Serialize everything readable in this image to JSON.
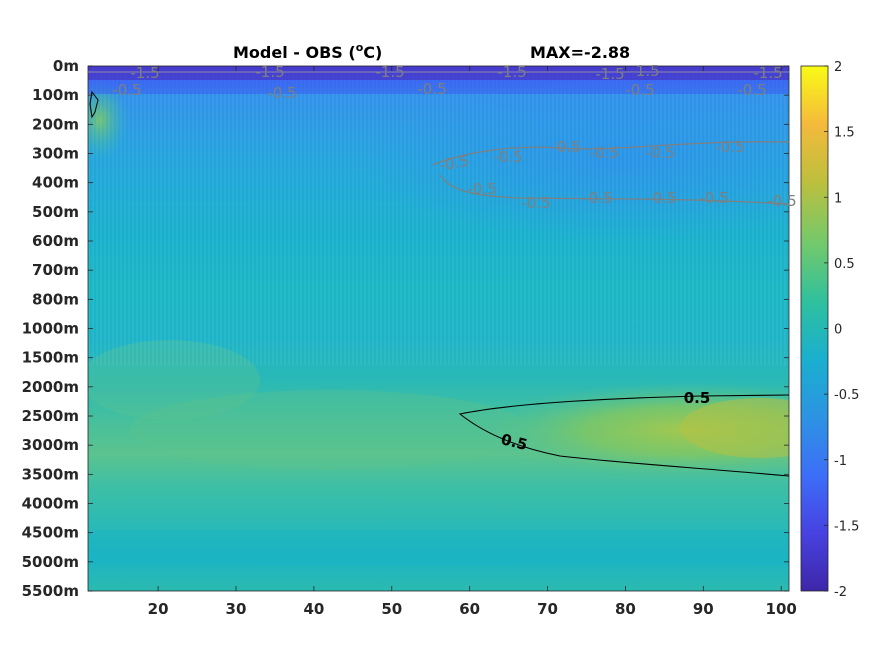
{
  "chart_data": {
    "type": "heatmap",
    "title": "Model - OBS (",
    "title_unit_sup": "o",
    "title_unit_end": "C)",
    "annotation": "MAX=-2.88",
    "x_ticks": [
      "20",
      "30",
      "40",
      "50",
      "60",
      "70",
      "80",
      "90",
      "100"
    ],
    "x_tick_values": [
      20,
      30,
      40,
      50,
      60,
      70,
      80,
      90,
      100
    ],
    "xlim": [
      11,
      101
    ],
    "y_ticks": [
      "0m",
      "100m",
      "200m",
      "300m",
      "400m",
      "500m",
      "600m",
      "700m",
      "800m",
      "1000m",
      "1500m",
      "2000m",
      "2500m",
      "3000m",
      "3500m",
      "4000m",
      "4500m",
      "5000m",
      "5500m"
    ],
    "y_tick_values": [
      0,
      100,
      200,
      300,
      400,
      500,
      600,
      700,
      800,
      1000,
      1500,
      2000,
      2500,
      3000,
      3500,
      4000,
      4500,
      5000,
      5500
    ],
    "colorbar": {
      "ticks": [
        "2",
        "1.5",
        "1",
        "0.5",
        "0",
        "-0.5",
        "-1",
        "-1.5",
        "-2"
      ],
      "tick_values": [
        2,
        1.5,
        1,
        0.5,
        0,
        -0.5,
        -1,
        -1.5,
        -2
      ],
      "range": [
        -2,
        2
      ],
      "colormap": "parula",
      "colors": [
        "#3e26a8",
        "#4742e0",
        "#3d6ef8",
        "#2d93e3",
        "#1aafcf",
        "#2ec09e",
        "#72c96c",
        "#bdbf3d",
        "#f5ba3c",
        "#f9fb15"
      ]
    },
    "contours": [
      {
        "level": 0.5,
        "labels": [
          "0.5",
          "0.5"
        ],
        "color": "#000000"
      },
      {
        "level": -0.5,
        "labels": [
          "-0.5",
          "-0.5",
          "-0.5",
          "-0.5",
          "-0.5",
          "-0.5",
          "-0.5",
          "-0.5",
          "-0.5",
          "-0.5",
          "-0.5",
          "-0.5",
          "-0.5",
          "-0.5",
          "-0.5",
          "-0.5",
          "-0.5"
        ],
        "color": "#7f7f7f"
      },
      {
        "level": -1.5,
        "labels": [
          "-1.5",
          "-1.5",
          "-1.5",
          "-1.5",
          "-1.5",
          "-1.5",
          "-1.5"
        ],
        "color": "#7f7f7f"
      }
    ]
  }
}
